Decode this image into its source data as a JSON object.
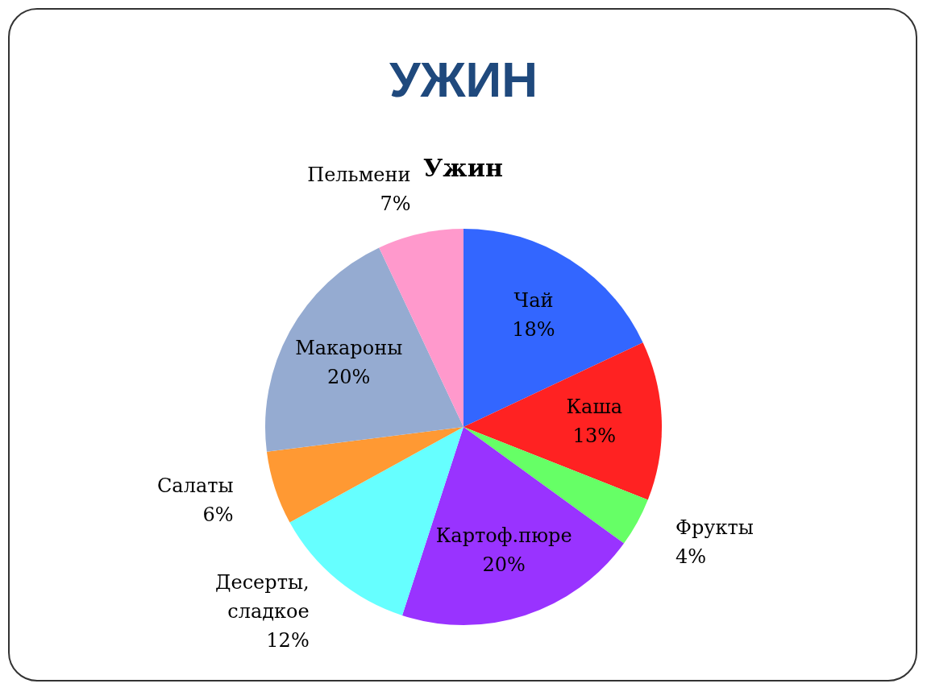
{
  "chart_data": {
    "type": "pie",
    "title": "УЖИН",
    "subtitle": "Ужин",
    "categories": [
      "Чай",
      "Каша",
      "Фрукты",
      "Картоф.пюре",
      "Десерты, сладкое",
      "Салаты",
      "Макароны",
      "Пельмени"
    ],
    "values": [
      18,
      13,
      4,
      20,
      12,
      6,
      20,
      7
    ],
    "value_labels": [
      "18%",
      "13%",
      "4%",
      "20%",
      "12%",
      "6%",
      "20%",
      "7%"
    ],
    "colors": [
      "#3366ff",
      "#ff2222",
      "#66ff66",
      "#9933ff",
      "#66ffff",
      "#ff9933",
      "#95abd1",
      "#ff99cc"
    ],
    "legend": false
  }
}
